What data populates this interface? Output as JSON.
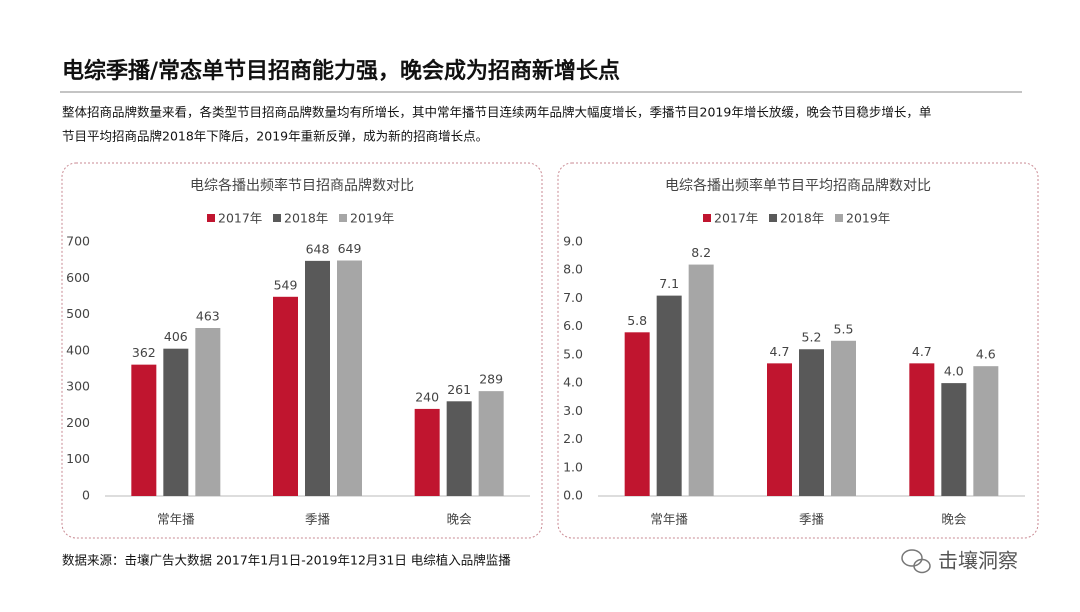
{
  "title": "电综季播/常态单节目招商能力强，晚会成为招商新增长点",
  "description": [
    "整体招商品牌数量来看，各类型节目招商品牌数量均有所增长，其中常年播节目连续两年品牌大幅度增长，季播节目2019年增长放缓，晚会节目稳步增长，单",
    "节目平均招商品牌2018年下降后，2019年重新反弹，成为新的招商增长点。"
  ],
  "source": "数据来源：击壤广告大数据 2017年1月1日-2019年12月31日 电综植入品牌监播",
  "brand": "击壤洞察",
  "chart_data": [
    {
      "type": "bar",
      "title": "电综各播出频率节目招商品牌数对比",
      "categories": [
        "常年播",
        "季播",
        "晚会"
      ],
      "series": [
        {
          "name": "2017年",
          "color": "#c0152f",
          "values": [
            362,
            549,
            240
          ]
        },
        {
          "name": "2018年",
          "color": "#595959",
          "values": [
            406,
            648,
            261
          ]
        },
        {
          "name": "2019年",
          "color": "#a6a6a6",
          "values": [
            463,
            649,
            289
          ]
        }
      ],
      "ylim": [
        0,
        700
      ],
      "yticks": [
        0,
        100,
        200,
        300,
        400,
        500,
        600,
        700
      ],
      "grid": false,
      "legend": "top"
    },
    {
      "type": "bar",
      "title": "电综各播出频率单节目平均招商品牌数对比",
      "categories": [
        "常年播",
        "季播",
        "晚会"
      ],
      "series": [
        {
          "name": "2017年",
          "color": "#c0152f",
          "values": [
            5.8,
            4.7,
            4.7
          ]
        },
        {
          "name": "2018年",
          "color": "#595959",
          "values": [
            7.1,
            5.2,
            4
          ],
          "value_labels": [
            "7.1",
            "5.2",
            "4.0"
          ]
        },
        {
          "name": "2019年",
          "color": "#a6a6a6",
          "values": [
            8.2,
            5.5,
            4.6
          ]
        }
      ],
      "ylim": [
        0,
        9
      ],
      "yticks": [
        {
          "value": 0,
          "label": "0.0"
        },
        {
          "value": 1,
          "label": "1.0"
        },
        {
          "value": 2,
          "label": "2.0"
        },
        {
          "value": 3,
          "label": "3.0"
        },
        {
          "value": 4,
          "label": "4.0"
        },
        {
          "value": 5,
          "label": "5.0"
        },
        {
          "value": 6,
          "label": "6.0"
        },
        {
          "value": 7,
          "label": "7.0"
        },
        {
          "value": 8,
          "label": "8.0"
        },
        {
          "value": 9,
          "label": "9.0"
        }
      ],
      "grid": false,
      "legend": "top"
    }
  ]
}
